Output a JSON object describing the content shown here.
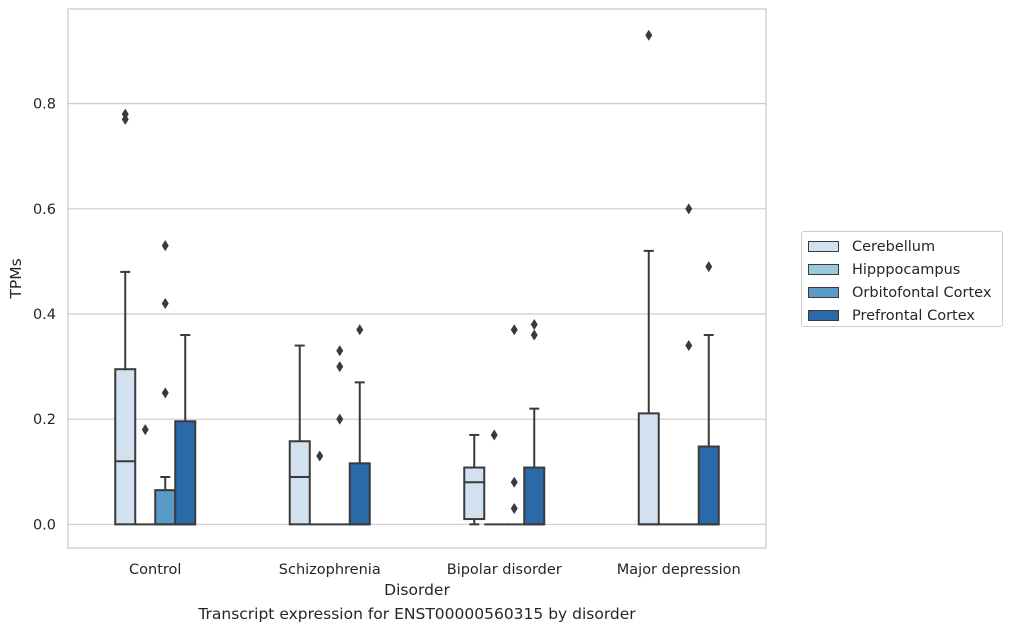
{
  "chart_data": {
    "type": "box",
    "caption": "Transcript expression for ENST00000560315 by disorder",
    "xlabel": "Disorder",
    "ylabel": "TPMs",
    "ylim": [
      -0.045,
      0.98
    ],
    "yticks": [
      "0.0",
      "0.2",
      "0.4",
      "0.6",
      "0.8"
    ],
    "grid": true,
    "legend_position": "right",
    "categories": [
      "Control",
      "Schizophrenia",
      "Bipolar disorder",
      "Major depression"
    ],
    "series": [
      {
        "name": "Cerebellum",
        "color": "#d1e1ef",
        "boxes": [
          {
            "q1": 0.0,
            "median": 0.12,
            "q3": 0.295,
            "whisker_low": 0.0,
            "whisker_high": 0.48,
            "outliers": [
              0.77,
              0.78
            ]
          },
          {
            "q1": 0.0,
            "median": 0.09,
            "q3": 0.158,
            "whisker_low": 0.0,
            "whisker_high": 0.34,
            "outliers": []
          },
          {
            "q1": 0.01,
            "median": 0.08,
            "q3": 0.108,
            "whisker_low": 0.0,
            "whisker_high": 0.17,
            "outliers": []
          },
          {
            "q1": 0.0,
            "median": 0.0,
            "q3": 0.211,
            "whisker_low": 0.0,
            "whisker_high": 0.52,
            "outliers": [
              0.93
            ]
          }
        ]
      },
      {
        "name": "Hipppocampus",
        "color": "#9ac8e0",
        "boxes": [
          {
            "q1": 0.0,
            "median": 0.0,
            "q3": 0.0,
            "whisker_low": 0.0,
            "whisker_high": 0.0,
            "outliers": [
              0.18
            ]
          },
          {
            "q1": 0.0,
            "median": 0.0,
            "q3": 0.0,
            "whisker_low": 0.0,
            "whisker_high": 0.0,
            "outliers": [
              0.13
            ]
          },
          {
            "q1": 0.0,
            "median": 0.0,
            "q3": 0.0,
            "whisker_low": 0.0,
            "whisker_high": 0.0,
            "outliers": [
              0.17
            ]
          },
          {
            "q1": 0.0,
            "median": 0.0,
            "q3": 0.0,
            "whisker_low": 0.0,
            "whisker_high": 0.0,
            "outliers": []
          }
        ]
      },
      {
        "name": "Orbitofontal Cortex",
        "color": "#5a9ac8",
        "boxes": [
          {
            "q1": 0.0,
            "median": 0.0,
            "q3": 0.065,
            "whisker_low": 0.0,
            "whisker_high": 0.09,
            "outliers": [
              0.25,
              0.42,
              0.53
            ]
          },
          {
            "q1": 0.0,
            "median": 0.0,
            "q3": 0.0,
            "whisker_low": 0.0,
            "whisker_high": 0.0,
            "outliers": [
              0.2,
              0.3,
              0.33
            ]
          },
          {
            "q1": 0.0,
            "median": 0.0,
            "q3": 0.0,
            "whisker_low": 0.0,
            "whisker_high": 0.0,
            "outliers": [
              0.03,
              0.08,
              0.37
            ]
          },
          {
            "q1": 0.0,
            "median": 0.0,
            "q3": 0.0,
            "whisker_low": 0.0,
            "whisker_high": 0.0,
            "outliers": [
              0.34,
              0.6
            ]
          }
        ]
      },
      {
        "name": "Prefrontal Cortex",
        "color": "#2b6aa8",
        "boxes": [
          {
            "q1": 0.0,
            "median": 0.0,
            "q3": 0.196,
            "whisker_low": 0.0,
            "whisker_high": 0.36,
            "outliers": []
          },
          {
            "q1": 0.0,
            "median": 0.0,
            "q3": 0.116,
            "whisker_low": 0.0,
            "whisker_high": 0.27,
            "outliers": [
              0.37
            ]
          },
          {
            "q1": 0.0,
            "median": 0.0,
            "q3": 0.108,
            "whisker_low": 0.0,
            "whisker_high": 0.22,
            "outliers": [
              0.36,
              0.38
            ]
          },
          {
            "q1": 0.0,
            "median": 0.0,
            "q3": 0.148,
            "whisker_low": 0.0,
            "whisker_high": 0.36,
            "outliers": [
              0.49
            ]
          }
        ]
      }
    ]
  }
}
